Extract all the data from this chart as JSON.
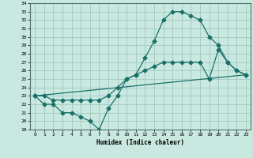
{
  "title": "",
  "xlabel": "Humidex (Indice chaleur)",
  "bg_color": "#c8e8e0",
  "grid_color": "#a0c8c0",
  "line_color": "#1a7068",
  "xmin": -0.5,
  "xmax": 23.5,
  "ymin": 19,
  "ymax": 34,
  "line1_x": [
    0,
    1,
    2,
    3,
    4,
    5,
    6,
    7,
    8,
    9,
    10,
    11,
    12,
    13,
    14,
    15,
    16,
    17,
    18,
    19,
    20,
    21,
    22,
    23
  ],
  "line1_y": [
    23,
    22,
    22,
    21,
    21,
    20.5,
    20,
    19,
    21.5,
    23,
    25,
    25.5,
    27.5,
    29.5,
    32,
    33,
    33,
    32.5,
    32,
    30,
    29,
    27,
    26,
    25.5
  ],
  "line2_x": [
    0,
    1,
    2,
    3,
    4,
    5,
    6,
    7,
    8,
    9,
    10,
    11,
    12,
    13,
    14,
    15,
    16,
    17,
    18,
    19,
    20,
    21,
    22,
    23
  ],
  "line2_y": [
    23,
    23,
    22.5,
    22.5,
    22.5,
    22.5,
    22.5,
    22.5,
    23,
    24,
    25,
    25.5,
    26,
    26.5,
    27,
    27,
    27,
    27,
    27,
    25,
    28.5,
    27,
    26,
    25.5
  ],
  "line3_x": [
    0,
    23
  ],
  "line3_y": [
    23,
    25.5
  ]
}
